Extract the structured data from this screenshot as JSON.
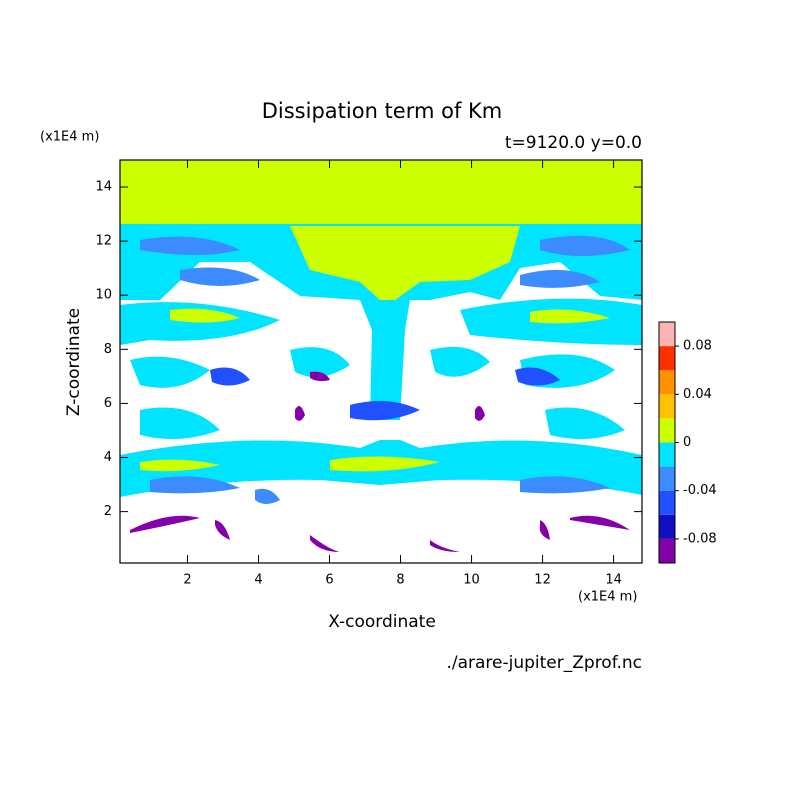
{
  "chart_data": {
    "type": "contour",
    "title": "Dissipation term of Km",
    "subtitle": "t=9120.0 y=0.0",
    "x_label": "X-coordinate",
    "y_label": "Z-coordinate",
    "x_unit": "(x1E4 m)",
    "y_unit": "(x1E4 m)",
    "source": "./arare-jupiter_Zprof.nc",
    "xlim": [
      0.1,
      14.8
    ],
    "xticks": [
      2,
      4,
      6,
      8,
      10,
      12,
      14
    ],
    "ylim": [
      0.1,
      15
    ],
    "yticks": [
      2,
      4,
      6,
      8,
      10,
      12,
      14
    ],
    "levels": [
      -0.1,
      -0.08,
      -0.06,
      -0.04,
      -0.02,
      0,
      0.02,
      0.04,
      0.06,
      0.08,
      0.1
    ],
    "colors": [
      "#8400a8",
      "#1010c0",
      "#2050ff",
      "#3c8cff",
      "#00e4ff",
      "#ccff00",
      "#ffc000",
      "#ff9000",
      "#ff3000",
      "#ffb4b4"
    ],
    "colorbar_ticks": [
      -0.08,
      -0.04,
      0,
      0.04,
      0.08
    ]
  }
}
